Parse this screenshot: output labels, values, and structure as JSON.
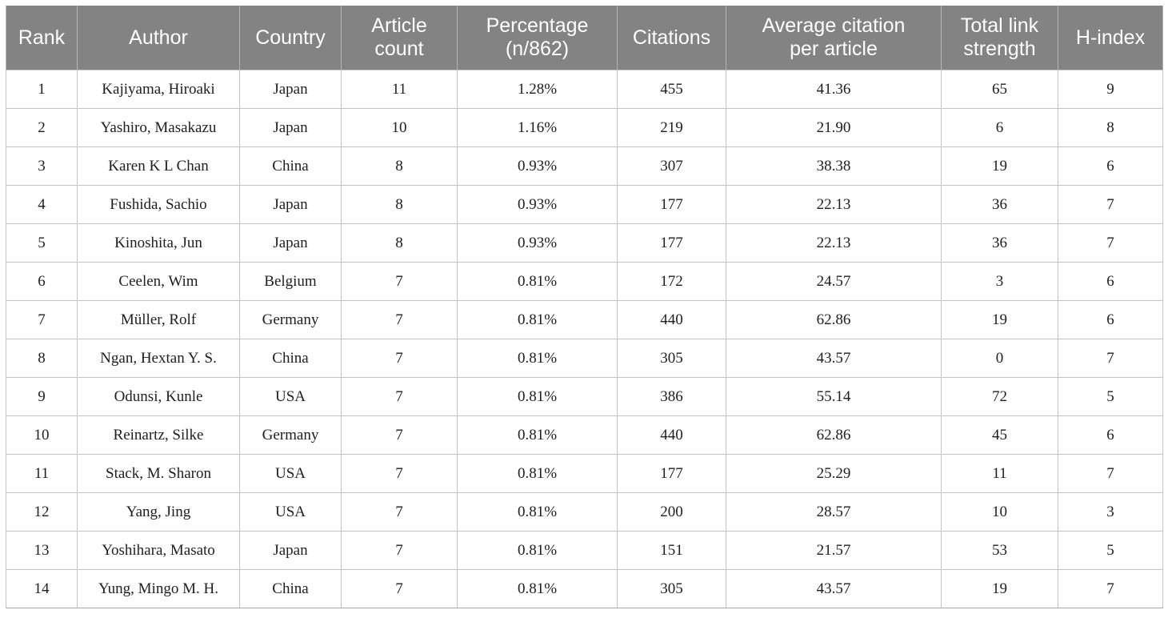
{
  "table": {
    "headers": [
      "Rank",
      "Author",
      "Country",
      "Article\ncount",
      "Percentage\n(n/862)",
      "Citations",
      "Average citation\nper article",
      "Total link\nstrength",
      "H-index"
    ],
    "rows": [
      [
        "1",
        "Kajiyama, Hiroaki",
        "Japan",
        "11",
        "1.28%",
        "455",
        "41.36",
        "65",
        "9"
      ],
      [
        "2",
        "Yashiro, Masakazu",
        "Japan",
        "10",
        "1.16%",
        "219",
        "21.90",
        "6",
        "8"
      ],
      [
        "3",
        "Karen K L Chan",
        "China",
        "8",
        "0.93%",
        "307",
        "38.38",
        "19",
        "6"
      ],
      [
        "4",
        "Fushida, Sachio",
        "Japan",
        "8",
        "0.93%",
        "177",
        "22.13",
        "36",
        "7"
      ],
      [
        "5",
        "Kinoshita, Jun",
        "Japan",
        "8",
        "0.93%",
        "177",
        "22.13",
        "36",
        "7"
      ],
      [
        "6",
        "Ceelen, Wim",
        "Belgium",
        "7",
        "0.81%",
        "172",
        "24.57",
        "3",
        "6"
      ],
      [
        "7",
        "Müller, Rolf",
        "Germany",
        "7",
        "0.81%",
        "440",
        "62.86",
        "19",
        "6"
      ],
      [
        "8",
        "Ngan, Hextan Y. S.",
        "China",
        "7",
        "0.81%",
        "305",
        "43.57",
        "0",
        "7"
      ],
      [
        "9",
        "Odunsi, Kunle",
        "USA",
        "7",
        "0.81%",
        "386",
        "55.14",
        "72",
        "5"
      ],
      [
        "10",
        "Reinartz, Silke",
        "Germany",
        "7",
        "0.81%",
        "440",
        "62.86",
        "45",
        "6"
      ],
      [
        "11",
        "Stack, M. Sharon",
        "USA",
        "7",
        "0.81%",
        "177",
        "25.29",
        "11",
        "7"
      ],
      [
        "12",
        "Yang, Jing",
        "USA",
        "7",
        "0.81%",
        "200",
        "28.57",
        "10",
        "3"
      ],
      [
        "13",
        "Yoshihara, Masato",
        "Japan",
        "7",
        "0.81%",
        "151",
        "21.57",
        "53",
        "5"
      ],
      [
        "14",
        "Yung, Mingo M. H.",
        "China",
        "7",
        "0.81%",
        "305",
        "43.57",
        "19",
        "7"
      ]
    ]
  },
  "colors": {
    "header_background": "#838383",
    "header_text": "#ffffff",
    "cell_border": "#c4c4c4"
  }
}
